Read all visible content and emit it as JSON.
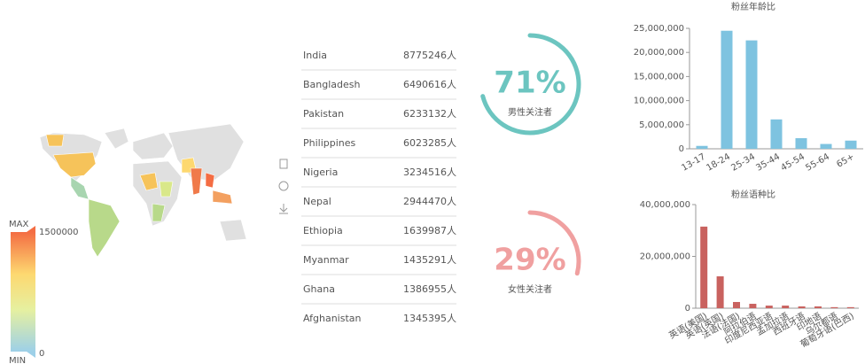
{
  "map": {
    "max_label": "MAX",
    "max_value": "1500000",
    "min_value": "0",
    "min_label": "MIN"
  },
  "table": {
    "rows": [
      [
        "India",
        "8775246人"
      ],
      [
        "Bangladesh",
        "6490616人"
      ],
      [
        "Pakistan",
        "6233132人"
      ],
      [
        "Philippines",
        "6023285人"
      ],
      [
        "Nigeria",
        "3234516人"
      ],
      [
        "Nepal",
        "2944470人"
      ],
      [
        "Ethiopia",
        "1639987人"
      ],
      [
        "Myanmar",
        "1435291人"
      ],
      [
        "Ghana",
        "1386955人"
      ],
      [
        "Afghanistan",
        "1345395人"
      ]
    ]
  },
  "gauges": [
    {
      "value": 71,
      "value_label": "71%",
      "label": "男性关注者",
      "color": "#6cc5c0"
    },
    {
      "value": 29,
      "value_label": "29%",
      "label": "女性关注者",
      "color": "#f0a0a0"
    }
  ],
  "chart_data": [
    {
      "type": "bar",
      "title": "粉丝年龄比",
      "color": "#7ec3e0",
      "categories": [
        "13-17",
        "18-24",
        "25-34",
        "35-44",
        "45-54",
        "55-64",
        "65+"
      ],
      "values": [
        600000,
        24500000,
        22500000,
        6100000,
        2200000,
        1000000,
        1700000
      ],
      "ylim": [
        0,
        25000000
      ],
      "yticks": [
        {
          "value": 0,
          "label": "0"
        },
        {
          "value": 5000000,
          "label": "5,000,000"
        },
        {
          "value": 10000000,
          "label": "10,000,000"
        },
        {
          "value": 15000000,
          "label": "15,000,000"
        },
        {
          "value": 20000000,
          "label": "20,000,000"
        },
        {
          "value": 25000000,
          "label": "25,000,000"
        }
      ]
    },
    {
      "type": "bar",
      "title": "粉丝语种比",
      "color": "#c9625f",
      "categories": [
        "英语(美国)",
        "英语(英国)",
        "法语(法国)",
        "阿拉伯语",
        "印度尼西亚语",
        "孟加拉语",
        "西班牙语",
        "印地语",
        "乌尔都语",
        "葡萄牙语(巴西)"
      ],
      "values": [
        31500000,
        12300000,
        2400000,
        1700000,
        1000000,
        1000000,
        700000,
        700000,
        400000,
        400000
      ],
      "ylim": [
        0,
        40000000
      ],
      "yticks": [
        {
          "value": 0,
          "label": "0"
        },
        {
          "value": 20000000,
          "label": "20,000,000"
        },
        {
          "value": 40000000,
          "label": "40,000,000"
        }
      ]
    }
  ]
}
